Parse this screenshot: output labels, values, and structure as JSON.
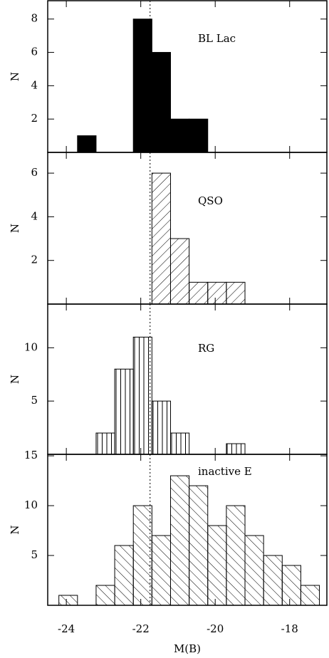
{
  "chart_data": [
    {
      "type": "histogram",
      "label": "BL Lac",
      "ylabel": "N",
      "hatch": "solid",
      "color": "#000000",
      "bins": [
        -23.7,
        -23.2,
        -22.7,
        -22.2,
        -21.7,
        -21.2,
        -20.7,
        -20.2
      ],
      "values": [
        1,
        0,
        0,
        8,
        6,
        2,
        2
      ],
      "xlim": [
        -24.5,
        -17
      ],
      "xticks": [
        -24,
        -22,
        -20,
        -18
      ],
      "ylim": [
        0,
        9.1
      ],
      "yticks": [
        2,
        4,
        6,
        8
      ],
      "vline": -21.75
    },
    {
      "type": "histogram",
      "label": "QSO",
      "ylabel": "N",
      "hatch": "/",
      "color": "#000000",
      "bins": [
        -21.7,
        -21.2,
        -20.7,
        -20.2,
        -19.7,
        -19.2
      ],
      "values": [
        6,
        3,
        1,
        1,
        1
      ],
      "xlim": [
        -24.5,
        -17
      ],
      "xticks": [
        -24,
        -22,
        -20,
        -18
      ],
      "ylim": [
        0,
        6.95
      ],
      "yticks": [
        2,
        4,
        6
      ],
      "vline": -21.75
    },
    {
      "type": "histogram",
      "label": "RG",
      "ylabel": "N",
      "hatch": "|",
      "color": "#000000",
      "bins": [
        -23.2,
        -22.7,
        -22.2,
        -21.7,
        -21.2,
        -20.7,
        -20.2,
        -19.7,
        -19.2
      ],
      "values": [
        2,
        8,
        11,
        5,
        2,
        0,
        0,
        1
      ],
      "xlim": [
        -24.5,
        -17
      ],
      "xticks": [
        -24,
        -22,
        -20,
        -18
      ],
      "ylim": [
        0,
        14.1
      ],
      "yticks": [
        5,
        10
      ],
      "vline": -21.75
    },
    {
      "type": "histogram",
      "label": "inactive E",
      "ylabel": "N",
      "xlabel": "M(B)",
      "hatch": "\\",
      "color": "#000000",
      "bins": [
        -24.2,
        -23.7,
        -23.2,
        -22.7,
        -22.2,
        -21.7,
        -21.2,
        -20.7,
        -20.2,
        -19.7,
        -19.2,
        -18.7,
        -18.2,
        -17.7,
        -17.2
      ],
      "values": [
        1,
        0,
        2,
        6,
        10,
        7,
        13,
        12,
        8,
        10,
        7,
        5,
        4,
        2
      ],
      "xlim": [
        -24.5,
        -17
      ],
      "xticks": [
        -24,
        -22,
        -20,
        -18
      ],
      "ylim": [
        0,
        15.15
      ],
      "yticks": [
        5,
        10,
        15
      ],
      "vline": -21.75
    }
  ]
}
